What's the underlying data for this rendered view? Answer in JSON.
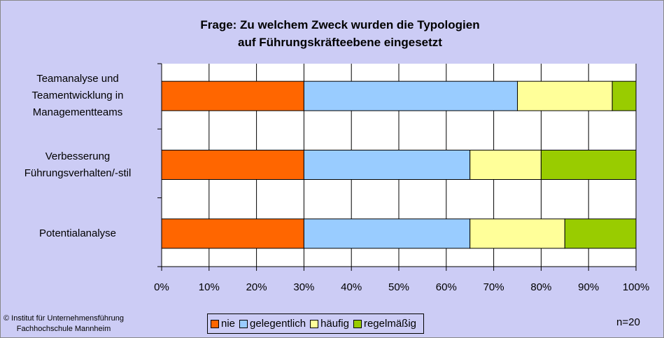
{
  "chart_data": {
    "type": "bar",
    "orientation": "horizontal",
    "stacked": true,
    "title": "Frage: Zu welchem Zweck wurden die Typologien\nauf Führungskräfteebene eingesetzt",
    "categories": [
      "Teamanalyse und\nTeamentwicklung in\nManagementteams",
      "Verbesserung\nFührungsverhalten/-stil",
      "Potentialanalyse"
    ],
    "series": [
      {
        "name": "nie",
        "color": "#ff6600",
        "values": [
          30,
          30,
          30
        ]
      },
      {
        "name": "gelegentlich",
        "color": "#99ccff",
        "values": [
          45,
          35,
          35
        ]
      },
      {
        "name": "häufig",
        "color": "#ffff99",
        "values": [
          20,
          15,
          20
        ]
      },
      {
        "name": "regelmäßig",
        "color": "#99cc00",
        "values": [
          5,
          20,
          15
        ]
      }
    ],
    "xlim": [
      0,
      100
    ],
    "xticks": [
      {
        "value": 0,
        "label": "0%"
      },
      {
        "value": 10,
        "label": "10%"
      },
      {
        "value": 20,
        "label": "20%"
      },
      {
        "value": 30,
        "label": "30%"
      },
      {
        "value": 40,
        "label": "40%"
      },
      {
        "value": 50,
        "label": "50%"
      },
      {
        "value": 60,
        "label": "60%"
      },
      {
        "value": 70,
        "label": "70%"
      },
      {
        "value": 80,
        "label": "80%"
      },
      {
        "value": 90,
        "label": "90%"
      },
      {
        "value": 100,
        "label": "100%"
      }
    ],
    "grid": true,
    "legend": "bottom",
    "source": "© Institut für Unternehmensführung\nFachhochschule Mannheim",
    "annotation": "n=20"
  }
}
